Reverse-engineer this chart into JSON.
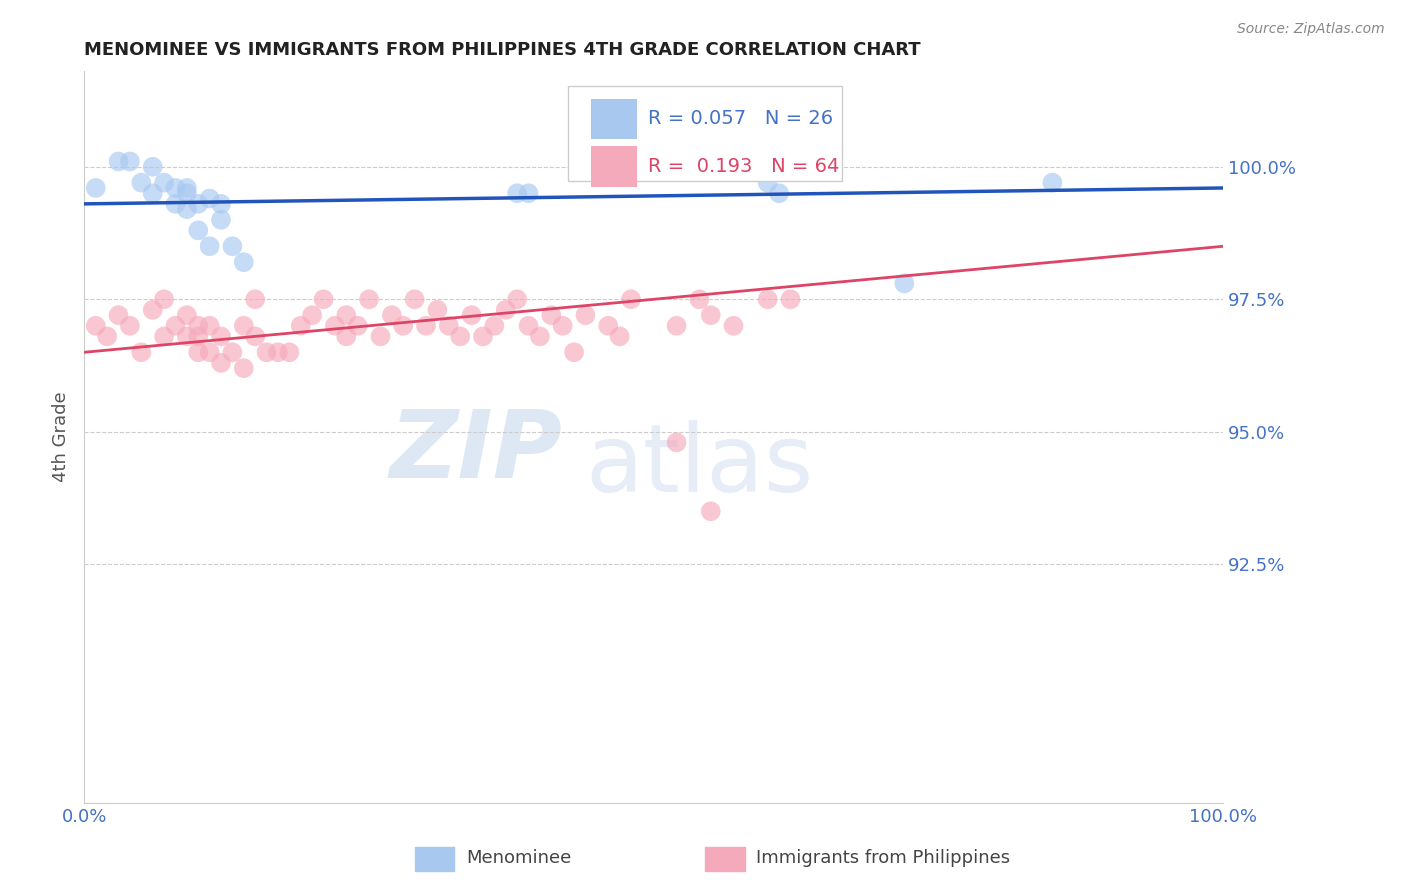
{
  "title": "MENOMINEE VS IMMIGRANTS FROM PHILIPPINES 4TH GRADE CORRELATION CHART",
  "source": "Source: ZipAtlas.com",
  "ylabel": "4th Grade",
  "y_tick_labels": [
    "92.5%",
    "95.0%",
    "97.5%",
    "100.0%"
  ],
  "y_tick_values": [
    92.5,
    95.0,
    97.5,
    100.0
  ],
  "x_min": 0.0,
  "x_max": 100.0,
  "y_min": 88.0,
  "y_max": 101.8,
  "blue_R": 0.057,
  "blue_N": 26,
  "pink_R": 0.193,
  "pink_N": 64,
  "blue_color": "#a8c8f0",
  "pink_color": "#f5aabb",
  "blue_line_color": "#2255bb",
  "pink_line_color": "#dd4466",
  "legend_label_blue": "Menominee",
  "legend_label_pink": "Immigrants from Philippines",
  "watermark_zip": "ZIP",
  "watermark_atlas": "atlas",
  "blue_x": [
    1,
    3,
    4,
    5,
    6,
    6,
    7,
    8,
    8,
    9,
    9,
    9,
    10,
    10,
    11,
    11,
    12,
    12,
    13,
    14,
    38,
    39,
    60,
    61,
    72,
    85
  ],
  "blue_y": [
    99.6,
    100.1,
    100.1,
    99.7,
    99.5,
    100.0,
    99.7,
    99.3,
    99.6,
    99.5,
    99.2,
    99.6,
    98.8,
    99.3,
    99.4,
    98.5,
    99.0,
    99.3,
    98.5,
    98.2,
    99.5,
    99.5,
    99.7,
    99.5,
    97.8,
    99.7
  ],
  "pink_x": [
    1,
    2,
    3,
    4,
    5,
    6,
    7,
    7,
    8,
    9,
    9,
    10,
    10,
    10,
    11,
    11,
    12,
    12,
    13,
    14,
    14,
    15,
    15,
    16,
    17,
    18,
    19,
    20,
    21,
    22,
    23,
    23,
    24,
    25,
    26,
    27,
    28,
    29,
    30,
    31,
    32,
    33,
    34,
    35,
    36,
    37,
    38,
    39,
    40,
    41,
    42,
    43,
    44,
    46,
    47,
    48,
    52,
    54,
    55,
    57,
    60,
    62,
    52,
    55
  ],
  "pink_y": [
    97.0,
    96.8,
    97.2,
    97.0,
    96.5,
    97.3,
    96.8,
    97.5,
    97.0,
    96.8,
    97.2,
    96.5,
    97.0,
    96.8,
    96.5,
    97.0,
    96.3,
    96.8,
    96.5,
    96.2,
    97.0,
    96.8,
    97.5,
    96.5,
    96.5,
    96.5,
    97.0,
    97.2,
    97.5,
    97.0,
    97.2,
    96.8,
    97.0,
    97.5,
    96.8,
    97.2,
    97.0,
    97.5,
    97.0,
    97.3,
    97.0,
    96.8,
    97.2,
    96.8,
    97.0,
    97.3,
    97.5,
    97.0,
    96.8,
    97.2,
    97.0,
    96.5,
    97.2,
    97.0,
    96.8,
    97.5,
    97.0,
    97.5,
    97.2,
    97.0,
    97.5,
    97.5,
    94.8,
    93.5
  ],
  "blue_trend_x": [
    0,
    100
  ],
  "blue_trend_y": [
    99.3,
    99.6
  ],
  "pink_trend_x": [
    0,
    100
  ],
  "pink_trend_y": [
    96.5,
    98.5
  ]
}
